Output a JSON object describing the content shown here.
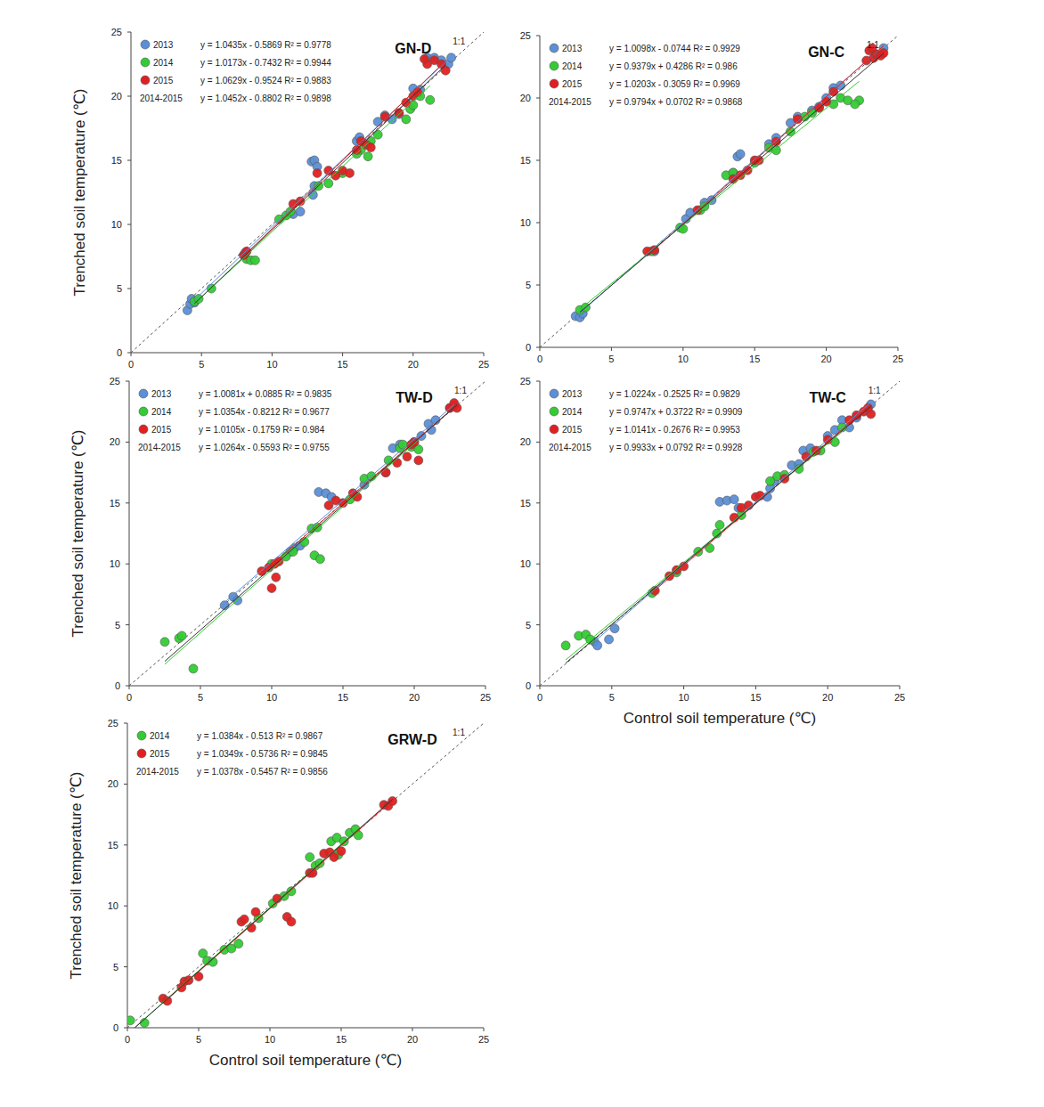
{
  "chart_data": [
    {
      "type": "scatter",
      "title": "GN-D",
      "y_label": "Trenched soil temperature (℃)",
      "xlim": [
        0,
        25
      ],
      "ylim": [
        0,
        25
      ],
      "xticks": [
        0,
        5,
        10,
        15,
        20,
        25
      ],
      "yticks": [
        0,
        5,
        10,
        15,
        20,
        25
      ],
      "reference_line": "1:1",
      "marker": "circle",
      "series": [
        {
          "name": "2013",
          "color": "#5b8fd6",
          "equation": "y = 1.0435x - 0.5869  R² = 0.9778",
          "fit": {
            "slope": 1.0435,
            "intercept": -0.5869
          },
          "x": [
            4,
            4.2,
            4.3,
            4.5,
            8,
            8.1,
            11.5,
            12,
            12.8,
            13,
            13.2,
            12.9,
            13,
            16,
            16.2,
            17.5,
            18,
            18.5,
            19,
            20,
            20.5,
            21,
            21.5,
            22,
            22.5,
            22.7
          ],
          "values": [
            3.3,
            3.8,
            4.2,
            3.9,
            7.6,
            7.8,
            10.8,
            11,
            14.9,
            15,
            14.5,
            12.3,
            13,
            16.5,
            16.8,
            18,
            18.5,
            18.2,
            18.6,
            20.6,
            20.5,
            23,
            23,
            22.8,
            22.5,
            23
          ]
        },
        {
          "name": "2014",
          "color": "#33cc33",
          "equation": "y = 1.0173x - 0.7432  R² = 0.9944",
          "fit": {
            "slope": 1.0173,
            "intercept": -0.7432
          },
          "x": [
            4.5,
            4.8,
            5.7,
            8.2,
            8.5,
            8.8,
            10.5,
            11,
            11.3,
            13.3,
            14,
            15,
            16.3,
            16.8,
            17,
            19.5,
            19.8,
            20,
            20.5,
            21.2,
            17.5,
            16
          ],
          "values": [
            4,
            4.2,
            5,
            7.3,
            7.2,
            7.2,
            10.4,
            10.7,
            11,
            13,
            13.2,
            14,
            15.8,
            15.3,
            16.5,
            18.2,
            19,
            19.3,
            20,
            19.7,
            17,
            15.5
          ]
        },
        {
          "name": "2015",
          "color": "#e02020",
          "equation": "y = 1.0629x - 0.9524  R² = 0.9883",
          "fit": {
            "slope": 1.0629,
            "intercept": -0.9524
          },
          "x": [
            8,
            8.2,
            11.5,
            12,
            13.2,
            14,
            14.5,
            15,
            15.5,
            16,
            16.3,
            16.7,
            17,
            18,
            19,
            19.5,
            20,
            20.3,
            21,
            21.5,
            22,
            22.3,
            20.8
          ],
          "values": [
            7.6,
            7.9,
            11.6,
            11.8,
            14,
            14.2,
            13.8,
            14.2,
            14,
            15.8,
            16.5,
            16.2,
            16,
            18.4,
            18.7,
            19.5,
            20,
            20.3,
            22.5,
            22.8,
            22.5,
            22,
            22.9
          ]
        }
      ],
      "combined_fit": {
        "name": "2014-2015",
        "color": "#333333",
        "equation": "y = 1.0452x - 0.8802  R² = 0.9898",
        "slope": 1.0452,
        "intercept": -0.8802
      }
    },
    {
      "type": "scatter",
      "title": "GN-C",
      "xlim": [
        0,
        25
      ],
      "ylim": [
        0,
        25
      ],
      "xticks": [
        0,
        5,
        10,
        15,
        20,
        25
      ],
      "yticks": [
        0,
        5,
        10,
        15,
        20,
        25
      ],
      "reference_line": "1:1",
      "marker": "circle",
      "series": [
        {
          "name": "2013",
          "color": "#5b8fd6",
          "equation": "y = 1.0098x - 0.0744  R² = 0.9929",
          "fit": {
            "slope": 1.0098,
            "intercept": -0.0744
          },
          "x": [
            2.5,
            2.8,
            3,
            8,
            10.2,
            10.5,
            11.5,
            12,
            13.8,
            14,
            13.5,
            16,
            16.5,
            17.5,
            18,
            19,
            19.5,
            20,
            20.5,
            21,
            23.5,
            24
          ],
          "values": [
            2.5,
            2.4,
            2.7,
            7.7,
            10.3,
            10.8,
            11.6,
            11.8,
            15.3,
            15.5,
            14,
            16.3,
            16.8,
            18,
            18.5,
            19,
            19.3,
            20,
            20.8,
            21,
            23.5,
            24
          ]
        },
        {
          "name": "2014",
          "color": "#33cc33",
          "equation": "y = 0.9379x + 0.4286  R² = 0.986",
          "fit": {
            "slope": 0.9379,
            "intercept": 0.4286
          },
          "x": [
            2.8,
            3.2,
            7.8,
            9.8,
            10,
            11.2,
            11.5,
            13,
            13.5,
            15,
            16,
            16.5,
            17.5,
            18.5,
            19,
            20.5,
            21,
            21.5,
            22.3,
            22
          ],
          "values": [
            3,
            3.2,
            7.7,
            9.6,
            9.5,
            11,
            11.3,
            13.8,
            14,
            14.8,
            16,
            15.8,
            17.3,
            18.5,
            18.8,
            19.5,
            20,
            19.8,
            19.8,
            19.5
          ]
        },
        {
          "name": "2015",
          "color": "#e02020",
          "equation": "y = 1.0203x - 0.3059  R² = 0.9969",
          "fit": {
            "slope": 1.0203,
            "intercept": -0.3059
          },
          "x": [
            7.5,
            8,
            11,
            13.5,
            14,
            14.5,
            15,
            15.3,
            16.5,
            18,
            19.5,
            20,
            20.5,
            23,
            23.3,
            23.5,
            23.8,
            24,
            22.8,
            23.2
          ],
          "values": [
            7.7,
            7.8,
            11,
            13.5,
            13.8,
            14.2,
            15,
            15,
            16.5,
            18.3,
            19.2,
            19.7,
            20.5,
            23.8,
            23.2,
            23.5,
            23.4,
            23.6,
            23,
            24
          ]
        }
      ],
      "combined_fit": {
        "name": "2014-2015",
        "color": "#333333",
        "equation": "y = 0.9794x + 0.0702  R² = 0.9868",
        "slope": 0.9794,
        "intercept": 0.0702
      }
    },
    {
      "type": "scatter",
      "title": "TW-D",
      "y_label": "Trenched soil temperature (℃)",
      "xlim": [
        0,
        25
      ],
      "ylim": [
        0,
        25
      ],
      "xticks": [
        0,
        5,
        10,
        15,
        20,
        25
      ],
      "yticks": [
        0,
        5,
        10,
        15,
        20,
        25
      ],
      "reference_line": "1:1",
      "marker": "circle",
      "series": [
        {
          "name": "2013",
          "color": "#5b8fd6",
          "equation": "y = 1.0081x + 0.0885  R² = 0.9835",
          "fit": {
            "slope": 1.0081,
            "intercept": 0.0885
          },
          "x": [
            6.7,
            7.3,
            7.6,
            11.3,
            11.6,
            12,
            13.3,
            13.8,
            14.2,
            16.5,
            18,
            18.5,
            19,
            20,
            20.5,
            21,
            21.5,
            21.2,
            22.5,
            22.8
          ],
          "values": [
            6.6,
            7.3,
            7,
            11,
            11.3,
            11.5,
            15.9,
            15.8,
            15.5,
            16.5,
            17.5,
            19.5,
            19.8,
            20,
            20.5,
            21.5,
            21.8,
            21,
            22.8,
            23
          ]
        },
        {
          "name": "2014",
          "color": "#33cc33",
          "equation": "y = 1.0354x - 0.8212  R² = 0.9677",
          "fit": {
            "slope": 1.0354,
            "intercept": -0.8212
          },
          "x": [
            2.5,
            3.5,
            3.7,
            4.5,
            10,
            11,
            11.5,
            12.3,
            12.8,
            13.2,
            13,
            13.4,
            15.5,
            16.5,
            17,
            18.2,
            19,
            19.8,
            20.3,
            19.2
          ],
          "values": [
            3.6,
            3.9,
            4.1,
            1.4,
            10,
            10.6,
            11,
            11.8,
            12.9,
            13,
            10.7,
            10.4,
            15.3,
            17,
            17.2,
            18.5,
            19.5,
            19.6,
            19.4,
            19.8
          ]
        },
        {
          "name": "2015",
          "color": "#e02020",
          "equation": "y = 1.0105x - 0.1759  R² = 0.984",
          "fit": {
            "slope": 1.0105,
            "intercept": -0.1759
          },
          "x": [
            9.3,
            9.8,
            10,
            10.3,
            10.5,
            10.2,
            14,
            14.5,
            15,
            15.7,
            16,
            18,
            18.8,
            19.5,
            19.8,
            20.3,
            20,
            22.5,
            22.8,
            23
          ],
          "values": [
            9.4,
            9.7,
            8,
            8.9,
            10.2,
            10,
            14.8,
            15.2,
            15,
            15.8,
            15.5,
            17.5,
            18.3,
            18.8,
            19.8,
            18.5,
            20,
            22.8,
            23.2,
            22.8
          ]
        }
      ],
      "combined_fit": {
        "name": "2014-2015",
        "color": "#333333",
        "equation": "y = 1.0264x - 0.5593  R² = 0.9755",
        "slope": 1.0264,
        "intercept": -0.5593
      }
    },
    {
      "type": "scatter",
      "title": "TW-C",
      "x_label": "Control soil temperature (℃)",
      "xlim": [
        0,
        25
      ],
      "ylim": [
        0,
        25
      ],
      "xticks": [
        0,
        5,
        10,
        15,
        20,
        25
      ],
      "yticks": [
        0,
        5,
        10,
        15,
        20,
        25
      ],
      "reference_line": "1:1",
      "marker": "circle",
      "series": [
        {
          "name": "2013",
          "color": "#5b8fd6",
          "equation": "y = 1.0224x - 0.2525  R² = 0.9829",
          "fit": {
            "slope": 1.0224,
            "intercept": -0.2525
          },
          "x": [
            3.8,
            4,
            4.8,
            5.2,
            12.5,
            13,
            13.5,
            13.8,
            15.8,
            16,
            16.3,
            17.5,
            18,
            18.3,
            18.8,
            20,
            20.5,
            21,
            21.5,
            22,
            23
          ],
          "values": [
            3.6,
            3.3,
            3.8,
            4.7,
            15.1,
            15.2,
            15.3,
            14.6,
            15.5,
            16.2,
            16.8,
            18.1,
            18.2,
            19.3,
            19.5,
            20.5,
            21,
            21.8,
            21.2,
            22,
            23.1
          ]
        },
        {
          "name": "2014",
          "color": "#33cc33",
          "equation": "y = 0.9747x + 0.3722  R² = 0.9909",
          "fit": {
            "slope": 0.9747,
            "intercept": 0.3722
          },
          "x": [
            1.8,
            2.7,
            3.2,
            3.5,
            7.8,
            9.5,
            11,
            11.8,
            12.3,
            12.5,
            14,
            16,
            16.5,
            17,
            18,
            19,
            19.5,
            20.5,
            21
          ],
          "values": [
            3.3,
            4.1,
            4.2,
            3.8,
            7.6,
            9.3,
            11,
            11.3,
            12.5,
            13.2,
            14,
            16.8,
            17.2,
            17.3,
            17.8,
            19.2,
            19.3,
            20,
            21.2
          ]
        },
        {
          "name": "2015",
          "color": "#e02020",
          "equation": "y = 1.0141x - 0.2676  R² = 0.9953",
          "fit": {
            "slope": 1.0141,
            "intercept": -0.2676
          },
          "x": [
            8,
            9,
            9.5,
            10,
            13.5,
            14,
            14.5,
            15,
            15.3,
            17,
            18.5,
            19.2,
            20,
            21.5,
            22,
            22.5,
            23,
            22.8
          ],
          "values": [
            7.8,
            9,
            9.5,
            9.8,
            13.8,
            14.6,
            14.8,
            15.5,
            15.6,
            17,
            18.8,
            19.3,
            20.2,
            21.8,
            22.2,
            22.5,
            22.3,
            22.8
          ]
        }
      ],
      "combined_fit": {
        "name": "2014-2015",
        "color": "#333333",
        "equation": "y = 0.9933x + 0.0792  R² = 0.9928",
        "slope": 0.9933,
        "intercept": 0.0792
      }
    },
    {
      "type": "scatter",
      "title": "GRW-D",
      "x_label": "Control soil temperature (℃)",
      "y_label": "Trenched soil temperature (℃)",
      "xlim": [
        0,
        25
      ],
      "ylim": [
        0,
        25
      ],
      "xticks": [
        0,
        5,
        10,
        15,
        20,
        25
      ],
      "yticks": [
        0,
        5,
        10,
        15,
        20,
        25
      ],
      "reference_line": "1:1",
      "marker": "circle",
      "series": [
        {
          "name": "2014",
          "color": "#33cc33",
          "equation": "y = 1.0384x - 0.513  R² = 0.9867",
          "fit": {
            "slope": 1.0384,
            "intercept": -0.513
          },
          "x": [
            0.2,
            1.2,
            5.3,
            5.6,
            6,
            6.8,
            7.3,
            7.8,
            9.2,
            10.2,
            11,
            11.5,
            12.8,
            13.2,
            13.5,
            14.3,
            14.7,
            15.2,
            15.6,
            16,
            16.2,
            14.8
          ],
          "values": [
            0.6,
            0.4,
            6.1,
            5.5,
            5.4,
            6.4,
            6.5,
            6.9,
            9,
            10.2,
            10.8,
            11.2,
            14,
            13.3,
            13.5,
            15.3,
            15.6,
            15.3,
            16,
            16.3,
            15.8,
            14.2
          ]
        },
        {
          "name": "2015",
          "color": "#e02020",
          "equation": "y = 1.0349x - 0.5736  R² = 0.9845",
          "fit": {
            "slope": 1.0349,
            "intercept": -0.5736
          },
          "x": [
            2.5,
            2.8,
            3.8,
            4,
            4.3,
            5,
            8,
            8.2,
            8.7,
            9,
            10.5,
            11.2,
            11.5,
            12.8,
            13,
            13.8,
            14.2,
            14.5,
            15,
            18,
            18.3,
            18.6
          ],
          "values": [
            2.4,
            2.2,
            3.3,
            3.8,
            3.9,
            4.2,
            8.7,
            8.9,
            8.2,
            9.5,
            10.6,
            9.1,
            8.7,
            12.7,
            12.7,
            14.3,
            14.4,
            14,
            14.5,
            18.3,
            18.2,
            18.6
          ]
        }
      ],
      "combined_fit": {
        "name": "2014-2015",
        "color": "#333333",
        "equation": "y = 1.0378x - 0.5457  R² = 0.9856",
        "slope": 1.0378,
        "intercept": -0.5457
      }
    }
  ]
}
